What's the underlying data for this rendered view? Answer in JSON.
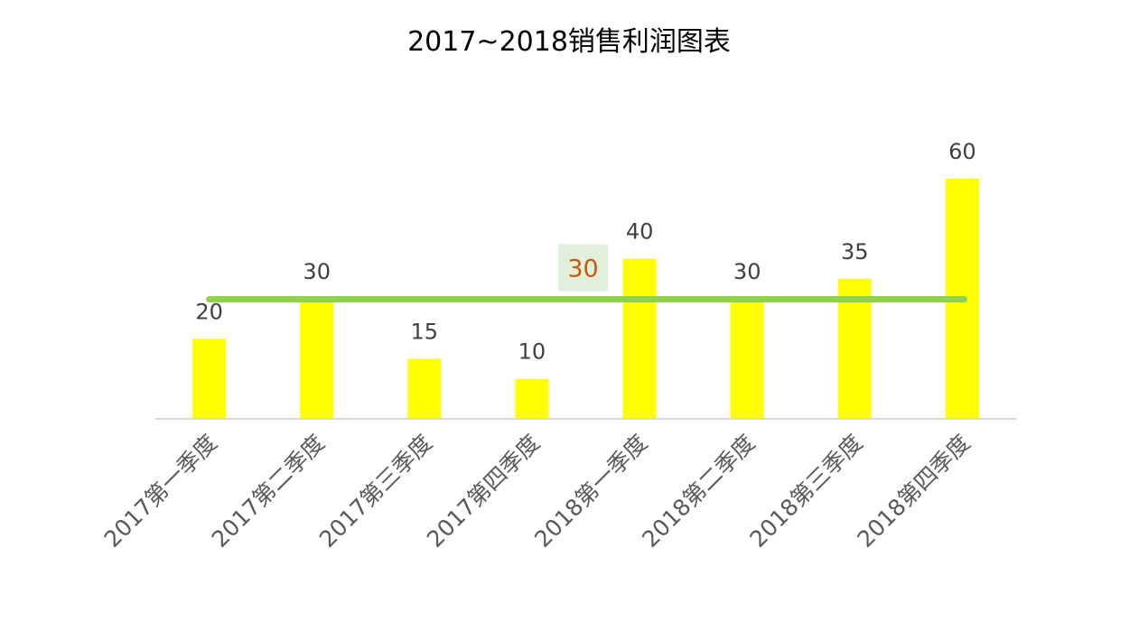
{
  "chart_data": {
    "type": "bar",
    "title": "2017~2018销售利润图表",
    "categories": [
      "2017第一季度",
      "2017第二季度",
      "2017第三季度",
      "2017第四季度",
      "2018第一季度",
      "2018第二季度",
      "2018第三季度",
      "2018第四季度"
    ],
    "values": [
      20,
      30,
      15,
      10,
      40,
      30,
      35,
      60
    ],
    "data_labels": [
      "20",
      "30",
      "15",
      "10",
      "40",
      "30",
      "35",
      "60"
    ],
    "average_line": {
      "value": 30,
      "label": "30",
      "color": "#92d050",
      "label_background": "#e2efda",
      "label_color": "#c55a11"
    },
    "bar_color": "#ffff00",
    "axis_color": "#d9d9d9",
    "ylim": [
      0,
      60
    ],
    "grid": false,
    "legend": "none",
    "xlabel": "",
    "ylabel": ""
  }
}
